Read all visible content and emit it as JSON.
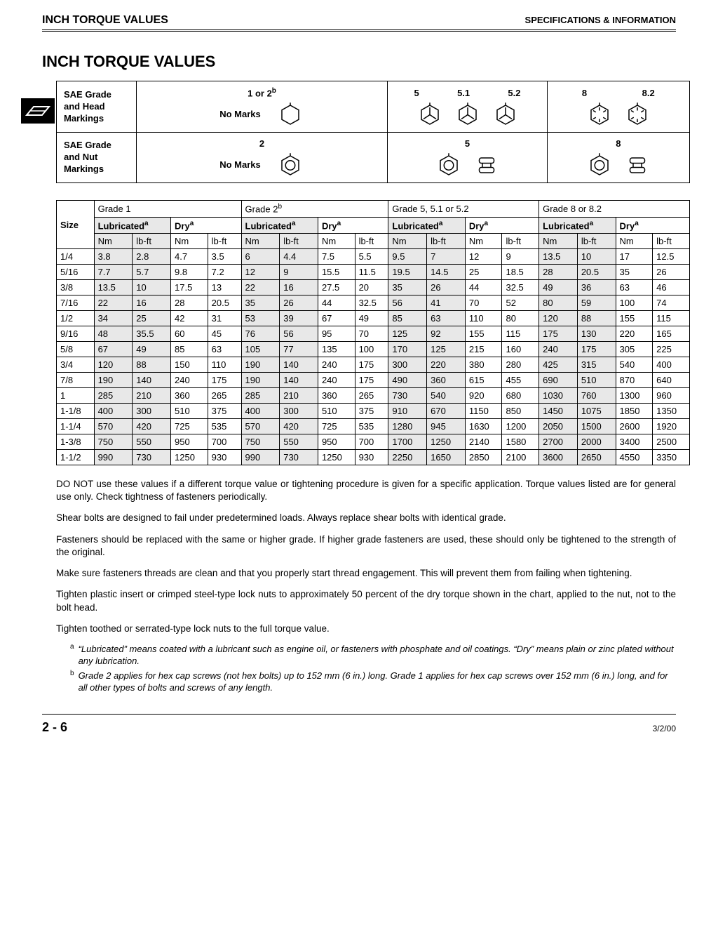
{
  "header": {
    "left": "INCH TORQUE VALUES",
    "right": "SPECIFICATIONS & INFORMATION"
  },
  "title": "INCH TORQUE VALUES",
  "markings_table": {
    "row1": {
      "label": "SAE Grade and Head Markings",
      "c1_text": "No Marks",
      "c1_label": "1 or 2",
      "c1_sup": "b",
      "c2_labels": [
        "5",
        "5.1",
        "5.2"
      ],
      "c3_labels": [
        "8",
        "8.2"
      ]
    },
    "row2": {
      "label": "SAE Grade and Nut Markings",
      "c1_text": "No Marks",
      "c1_label": "2",
      "c2_label": "5",
      "c3_label": "8"
    }
  },
  "data_table": {
    "size_label": "Size",
    "grades": [
      "Grade 1",
      "Grade 2",
      "Grade 5, 5.1 or 5.2",
      "Grade 8 or 8.2"
    ],
    "grade2_sup": "b",
    "cond_labels": {
      "lub": "Lubricated",
      "dry": "Dry",
      "sup": "a"
    },
    "units": [
      "Nm",
      "lb-ft"
    ],
    "rows": [
      {
        "size": "1/4",
        "v": [
          "3.8",
          "2.8",
          "4.7",
          "3.5",
          "6",
          "4.4",
          "7.5",
          "5.5",
          "9.5",
          "7",
          "12",
          "9",
          "13.5",
          "10",
          "17",
          "12.5"
        ]
      },
      {
        "size": "5/16",
        "v": [
          "7.7",
          "5.7",
          "9.8",
          "7.2",
          "12",
          "9",
          "15.5",
          "11.5",
          "19.5",
          "14.5",
          "25",
          "18.5",
          "28",
          "20.5",
          "35",
          "26"
        ]
      },
      {
        "size": "3/8",
        "v": [
          "13.5",
          "10",
          "17.5",
          "13",
          "22",
          "16",
          "27.5",
          "20",
          "35",
          "26",
          "44",
          "32.5",
          "49",
          "36",
          "63",
          "46"
        ]
      },
      {
        "size": "7/16",
        "v": [
          "22",
          "16",
          "28",
          "20.5",
          "35",
          "26",
          "44",
          "32.5",
          "56",
          "41",
          "70",
          "52",
          "80",
          "59",
          "100",
          "74"
        ]
      },
      {
        "size": "1/2",
        "v": [
          "34",
          "25",
          "42",
          "31",
          "53",
          "39",
          "67",
          "49",
          "85",
          "63",
          "110",
          "80",
          "120",
          "88",
          "155",
          "115"
        ]
      },
      {
        "size": "9/16",
        "v": [
          "48",
          "35.5",
          "60",
          "45",
          "76",
          "56",
          "95",
          "70",
          "125",
          "92",
          "155",
          "115",
          "175",
          "130",
          "220",
          "165"
        ]
      },
      {
        "size": "5/8",
        "v": [
          "67",
          "49",
          "85",
          "63",
          "105",
          "77",
          "135",
          "100",
          "170",
          "125",
          "215",
          "160",
          "240",
          "175",
          "305",
          "225"
        ]
      },
      {
        "size": "3/4",
        "v": [
          "120",
          "88",
          "150",
          "110",
          "190",
          "140",
          "240",
          "175",
          "300",
          "220",
          "380",
          "280",
          "425",
          "315",
          "540",
          "400"
        ]
      },
      {
        "size": "7/8",
        "v": [
          "190",
          "140",
          "240",
          "175",
          "190",
          "140",
          "240",
          "175",
          "490",
          "360",
          "615",
          "455",
          "690",
          "510",
          "870",
          "640"
        ]
      },
      {
        "size": "1",
        "v": [
          "285",
          "210",
          "360",
          "265",
          "285",
          "210",
          "360",
          "265",
          "730",
          "540",
          "920",
          "680",
          "1030",
          "760",
          "1300",
          "960"
        ]
      },
      {
        "size": "1-1/8",
        "v": [
          "400",
          "300",
          "510",
          "375",
          "400",
          "300",
          "510",
          "375",
          "910",
          "670",
          "1150",
          "850",
          "1450",
          "1075",
          "1850",
          "1350"
        ]
      },
      {
        "size": "1-1/4",
        "v": [
          "570",
          "420",
          "725",
          "535",
          "570",
          "420",
          "725",
          "535",
          "1280",
          "945",
          "1630",
          "1200",
          "2050",
          "1500",
          "2600",
          "1920"
        ]
      },
      {
        "size": "1-3/8",
        "v": [
          "750",
          "550",
          "950",
          "700",
          "750",
          "550",
          "950",
          "700",
          "1700",
          "1250",
          "2140",
          "1580",
          "2700",
          "2000",
          "3400",
          "2500"
        ]
      },
      {
        "size": "1-1/2",
        "v": [
          "990",
          "730",
          "1250",
          "930",
          "990",
          "730",
          "1250",
          "930",
          "2250",
          "1650",
          "2850",
          "2100",
          "3600",
          "2650",
          "4550",
          "3350"
        ]
      }
    ]
  },
  "notes": [
    "DO NOT use these values if a different torque value or tightening procedure is given for a specific application. Torque values listed are for general use only. Check tightness of fasteners periodically.",
    "Shear bolts are designed to fail under predetermined loads. Always replace shear bolts with identical grade.",
    "Fasteners should be replaced with the same or higher grade. If higher grade fasteners are used, these should only be tightened to the strength of the original.",
    "Make sure fasteners threads are clean and that you properly start thread engagement. This will prevent them from failing when tightening.",
    "Tighten plastic insert or crimped steel-type lock nuts to approximately 50 percent of the dry torque shown in the chart, applied to the nut, not to the bolt head.",
    "Tighten toothed or serrated-type lock nuts to the full torque value."
  ],
  "footnotes": {
    "a": "“Lubricated” means coated with a lubricant such as engine oil, or fasteners with phosphate and oil coatings. “Dry” means plain or zinc plated without any lubrication.",
    "b": "Grade 2 applies for hex cap screws (not hex bolts) up to 152 mm (6 in.) long. Grade 1 applies for hex cap screws over 152 mm (6 in.) long, and for all other types of bolts and screws of any length."
  },
  "footer": {
    "page": "2 - 6",
    "date": "3/2/00"
  }
}
